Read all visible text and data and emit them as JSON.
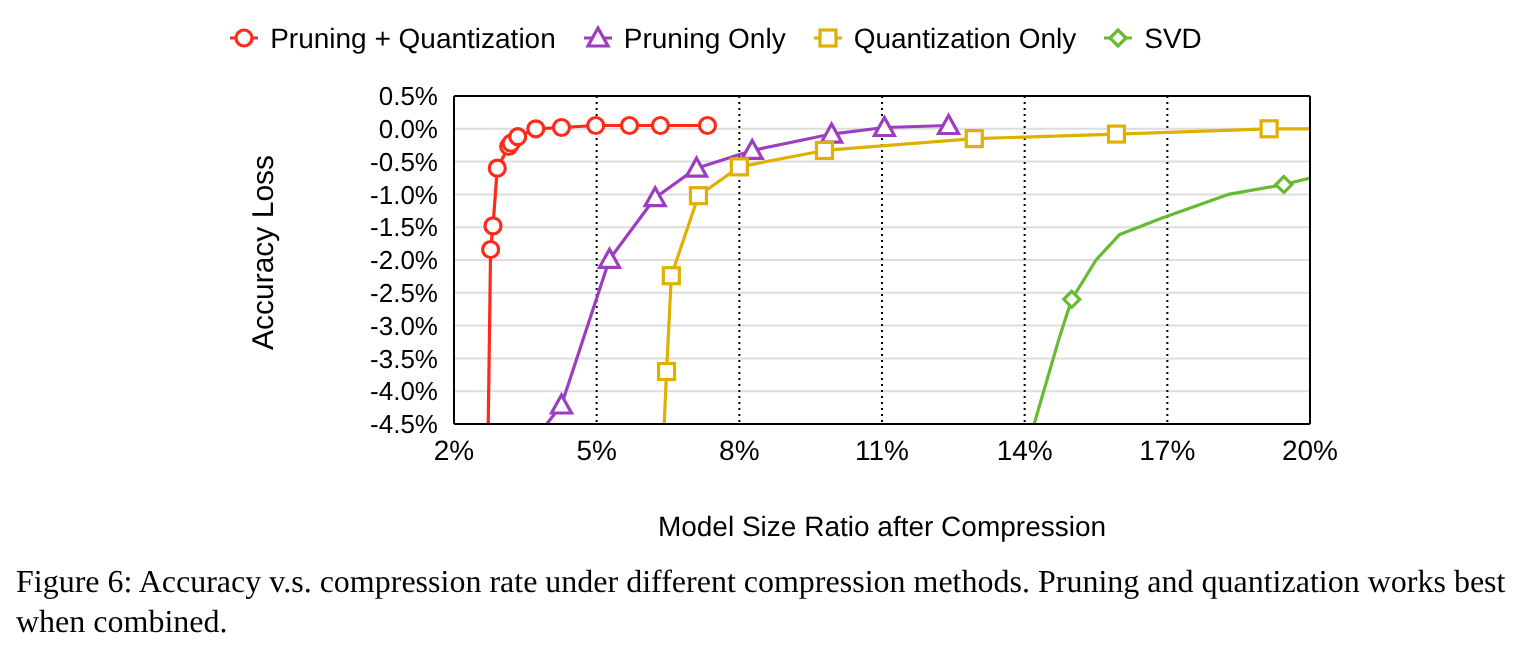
{
  "chart_data": {
    "type": "line",
    "xlabel": "Model Size Ratio after Compression",
    "ylabel": "Accuracy Loss",
    "annotations": [
      "Figure 6:  Accuracy v.s.  compression rate under different compression methods.  Pruning and quantization works best when combined."
    ],
    "series": [
      {
        "name": "Pruning + Quantization",
        "color": "#ff2a1a",
        "marker": "circle",
        "x": [
          2.77,
          2.82,
          2.91,
          3.15,
          3.2,
          3.34,
          3.72,
          4.26,
          4.98,
          5.69,
          6.34,
          7.33
        ],
        "values": [
          -1.84,
          -1.48,
          -0.6,
          -0.27,
          -0.22,
          -0.12,
          0.0,
          0.02,
          0.05,
          0.05,
          0.05,
          0.05
        ]
      },
      {
        "name": "Pruning Only",
        "color": "#9b3fc0",
        "marker": "triangle",
        "x": [
          4.26,
          5.27,
          6.23,
          7.1,
          8.27,
          9.94,
          11.05,
          12.4
        ],
        "values": [
          -4.21,
          -1.99,
          -1.05,
          -0.6,
          -0.33,
          -0.08,
          0.02,
          0.05
        ]
      },
      {
        "name": "Quantization Only",
        "color": "#e0b000",
        "marker": "square",
        "x": [
          6.47,
          6.57,
          7.14,
          8.0,
          9.79,
          12.94,
          15.93,
          19.14
        ],
        "values": [
          -3.7,
          -2.24,
          -1.02,
          -0.58,
          -0.33,
          -0.15,
          -0.08,
          0.0
        ]
      },
      {
        "name": "SVD",
        "type": "scatter",
        "color": "#66bb33",
        "marker": "diamond",
        "x": [
          14.99,
          19.45
        ],
        "values": [
          -2.6,
          -0.85
        ]
      },
      {
        "color": "#ff2a1a",
        "marker": "none",
        "x": [
          2.72,
          2.77
        ],
        "values": [
          -4.5,
          -1.84
        ]
      },
      {
        "color": "#9b3fc0",
        "marker": "none",
        "x": [
          3.95,
          4.26
        ],
        "values": [
          -4.5,
          -4.21
        ]
      },
      {
        "color": "#e0b000",
        "marker": "none",
        "x": [
          6.42,
          6.47
        ],
        "values": [
          -4.5,
          -3.7
        ]
      },
      {
        "color": "#e0b000",
        "marker": "none",
        "x": [
          19.14,
          20.0
        ],
        "values": [
          0.0,
          0.0
        ]
      },
      {
        "color": "#66bb33",
        "marker": "none",
        "x": [
          14.2,
          14.73,
          14.99,
          15.5,
          16.0,
          16.89,
          18.28,
          19.45,
          20.0
        ],
        "values": [
          -4.5,
          -3.18,
          -2.6,
          -2.0,
          -1.61,
          -1.36,
          -1.0,
          -0.85,
          -0.75
        ]
      }
    ],
    "xlim": [
      2,
      20
    ],
    "xticks": [
      {
        "value": 2,
        "label": "2%"
      },
      {
        "value": 5,
        "label": "5%"
      },
      {
        "value": 8,
        "label": "8%"
      },
      {
        "value": 11,
        "label": "11%"
      },
      {
        "value": 14,
        "label": "14%"
      },
      {
        "value": 17,
        "label": "17%"
      },
      {
        "value": 20,
        "label": "20%"
      }
    ],
    "ylim": [
      -4.5,
      0.5
    ],
    "yticks": [
      {
        "value": 0.5,
        "label": "0.5%"
      },
      {
        "value": 0,
        "label": "0.0%"
      },
      {
        "value": -0.5,
        "label": "-0.5%"
      },
      {
        "value": -1,
        "label": "-1.0%"
      },
      {
        "value": -1.5,
        "label": "-1.5%"
      },
      {
        "value": -2,
        "label": "-2.0%"
      },
      {
        "value": -2.5,
        "label": "-2.5%"
      },
      {
        "value": -3,
        "label": "-3.0%"
      },
      {
        "value": -3.5,
        "label": "-3.5%"
      },
      {
        "value": -4,
        "label": "-4.0%"
      },
      {
        "value": -4.5,
        "label": "-4.5%"
      }
    ],
    "grid": true,
    "legend": "top"
  }
}
